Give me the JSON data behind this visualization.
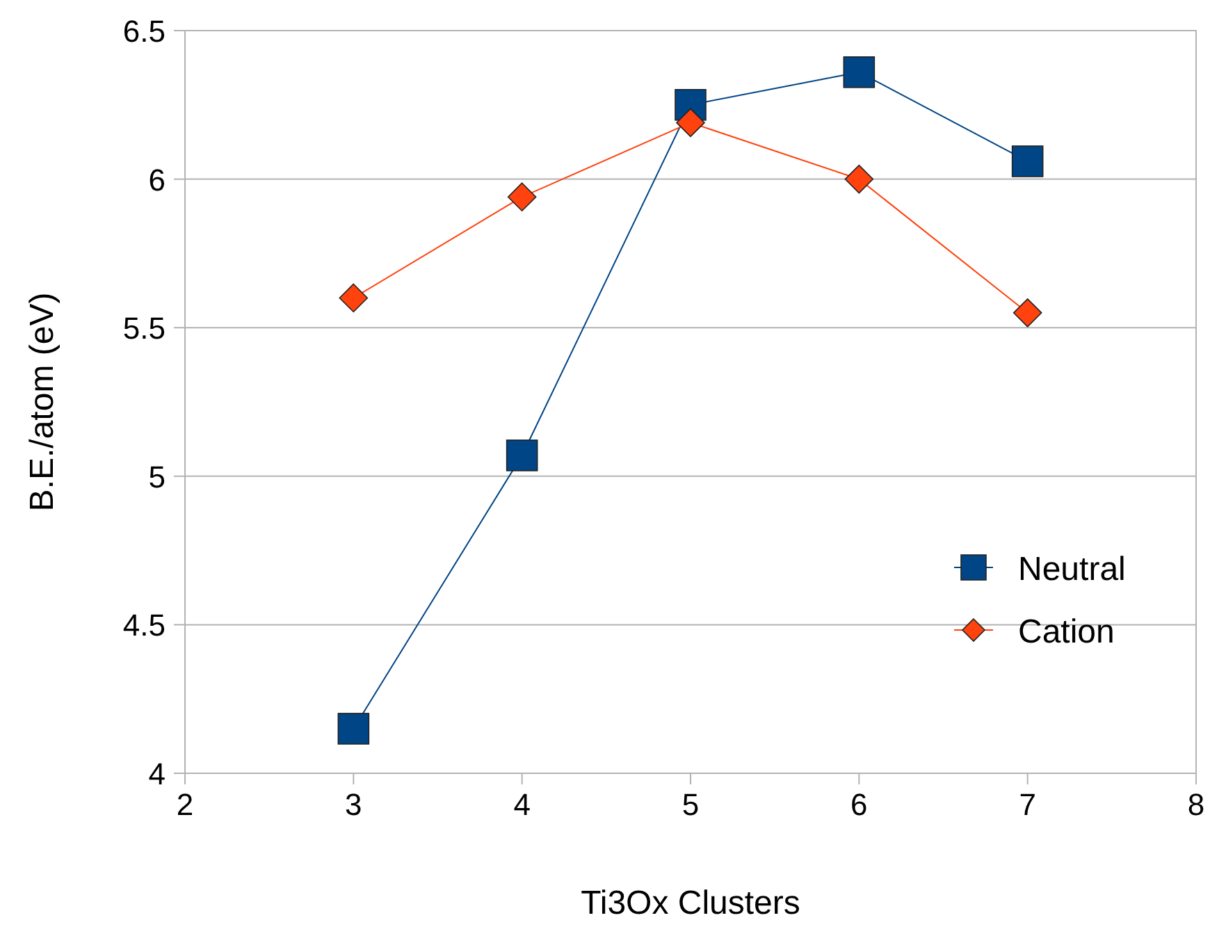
{
  "chart_data": {
    "type": "line",
    "xlabel": "Ti3Ox Clusters",
    "ylabel": "B.E./atom (eV)",
    "x": [
      3,
      4,
      5,
      6,
      7
    ],
    "series": [
      {
        "name": "Neutral",
        "color": "#004586",
        "marker": "square",
        "values": [
          4.15,
          5.07,
          6.25,
          6.36,
          6.06
        ]
      },
      {
        "name": "Cation",
        "color": "#ff420e",
        "marker": "diamond",
        "values": [
          5.6,
          5.94,
          6.19,
          6.0,
          5.55
        ]
      }
    ],
    "xlim": [
      2,
      8
    ],
    "xticks": [
      2,
      3,
      4,
      5,
      6,
      7,
      8
    ],
    "ylim": [
      4,
      6.5
    ],
    "yticks": [
      4,
      4.5,
      5,
      5.5,
      6,
      6.5
    ],
    "grid": "y",
    "legend": "right",
    "line_style": "solid"
  }
}
